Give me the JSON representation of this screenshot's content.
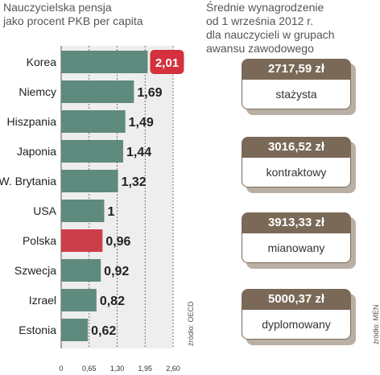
{
  "left_title": "Nauczycielska pensja\njako procent PKB per capita",
  "left_source": "źródło: OECD",
  "right_title": "Średnie wynagrodzenie\nod 1 września 2012 r.\ndla nauczycieli w grupach\nawansu zawodowego",
  "right_source": "źródło: MEN",
  "colors": {
    "bar": "#5f8a7e",
    "bar_highlight": "#cc3f4a",
    "badge": "#d4303d",
    "card_header": "#7a6957",
    "plot_bg": "#eeeeee"
  },
  "chart_data": {
    "type": "bar",
    "orientation": "horizontal",
    "categories": [
      "Korea",
      "Niemcy",
      "Hiszpania",
      "Japonia",
      "W. Brytania",
      "USA",
      "Polska",
      "Szwecja",
      "Izrael",
      "Estonia"
    ],
    "values": [
      2.01,
      1.69,
      1.49,
      1.44,
      1.32,
      1,
      0.96,
      0.92,
      0.82,
      0.62
    ],
    "value_labels": [
      "2,01",
      "1,69",
      "1,49",
      "1,44",
      "1,32",
      "1",
      "0,96",
      "0,92",
      "0,82",
      "0,62"
    ],
    "highlight": [
      "Korea",
      "Polska"
    ],
    "xlim": [
      0,
      2.6
    ],
    "xticks": [
      0,
      0.65,
      1.3,
      1.95,
      2.6
    ],
    "xtick_labels": [
      "0",
      "0,65",
      "1,30",
      "1,95",
      "2,60"
    ],
    "grid": "vertical-dashed"
  },
  "salary_cards": [
    {
      "amount": "2717,59 zł",
      "label": "stażysta"
    },
    {
      "amount": "3016,52 zł",
      "label": "kontraktowy"
    },
    {
      "amount": "3913,33 zł",
      "label": "mianowany"
    },
    {
      "amount": "5000,37 zł",
      "label": "dyplomowany"
    }
  ]
}
